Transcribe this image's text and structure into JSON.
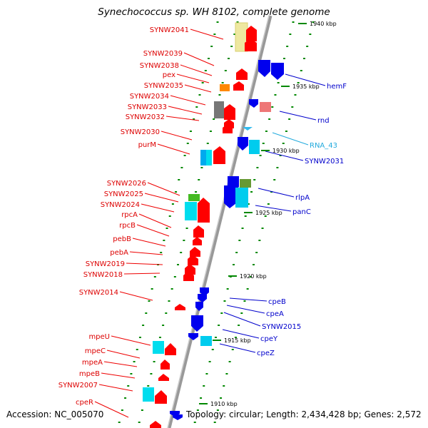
{
  "title": "Synechococcus sp. WH 8102, complete genome",
  "accession": "Accession: NC_005070",
  "topology": "Topology: circular; Length: 2,434,428 bp; Genes: 2,572",
  "colors": {
    "forward": "#ff0000",
    "reverse": "#0000ff",
    "rna": "#33bbee",
    "axis": "#999999",
    "ticks": "#008800"
  },
  "scale_labels": [
    "1940 kbp",
    "1935 kbp",
    "1930 kbp",
    "1925 kbp",
    "1920 kbp",
    "1915 kbp",
    "1910 kbp"
  ],
  "left_labels": [
    "SYNW2041",
    "SYNW2039",
    "SYNW2038",
    "pex",
    "SYNW2035",
    "SYNW2034",
    "SYNW2033",
    "SYNW2032",
    "SYNW2030",
    "purM",
    "SYNW2026",
    "SYNW2025",
    "SYNW2024",
    "rpcA",
    "rpcB",
    "pebB",
    "pebA",
    "SYNW2019",
    "SYNW2018",
    "SYNW2014",
    "mpeU",
    "mpeC",
    "mpeA",
    "mpeB",
    "SYNW2007",
    "cpeR"
  ],
  "right_labels": [
    "hemF",
    "rnd",
    "RNA_43",
    "SYNW2031",
    "rlpA",
    "panC",
    "cpeB",
    "cpeA",
    "SYNW2015",
    "cpeY",
    "cpeZ"
  ]
}
